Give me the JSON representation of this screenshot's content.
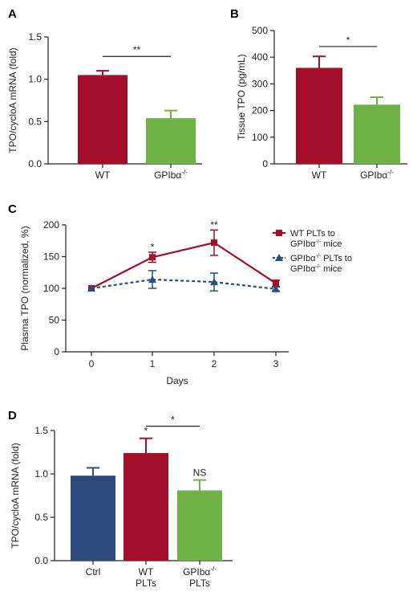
{
  "chart_data": [
    {
      "panel": "A",
      "type": "bar",
      "ylabel": "TPO/cycloA mRNA (fold)",
      "ylim": [
        0,
        1.5
      ],
      "yticks": [
        "0.0",
        "0.5",
        "1.0",
        "1.5"
      ],
      "categories": [
        "WT",
        "GPIbα-/-"
      ],
      "category_labels": [
        [
          "WT"
        ],
        [
          "GPIbα-/-"
        ]
      ],
      "values": [
        1.05,
        0.54
      ],
      "errors": [
        0.05,
        0.09
      ],
      "colors": [
        "#a30e2a",
        "#6fb247"
      ],
      "significance": [
        {
          "between": [
            0,
            1
          ],
          "label": "**",
          "y": 1.27
        }
      ],
      "bar_labels": []
    },
    {
      "panel": "B",
      "type": "bar",
      "ylabel": "Tissue TPO (pg/mL)",
      "ylim": [
        0,
        500
      ],
      "yticks": [
        "0",
        "100",
        "200",
        "300",
        "400",
        "500"
      ],
      "categories": [
        "WT",
        "GPIbα-/-"
      ],
      "category_labels": [
        [
          "WT"
        ],
        [
          "GPIbα-/-"
        ]
      ],
      "values": [
        360,
        222
      ],
      "errors": [
        43,
        28
      ],
      "colors": [
        "#a30e2a",
        "#6fb247"
      ],
      "significance": [
        {
          "between": [
            0,
            1
          ],
          "label": "*",
          "y": 440
        }
      ],
      "bar_labels": []
    },
    {
      "panel": "C",
      "type": "line",
      "ylabel": "Plasma TPO (normalized, %)",
      "xlabel": "Days",
      "x": [
        0,
        1,
        2,
        3
      ],
      "xticks": [
        "0",
        "1",
        "2",
        "3"
      ],
      "ylim": [
        0,
        200
      ],
      "yticks": [
        "0",
        "50",
        "100",
        "150",
        "200"
      ],
      "series": [
        {
          "name": "WT PLTs to GPIbα-/- mice",
          "legend_lines": [
            "WT PLTs to",
            "GPIbα-/- mice"
          ],
          "values": [
            100,
            149,
            172,
            108
          ],
          "errors": [
            0,
            8,
            20,
            5
          ],
          "color": "#a30e2a",
          "marker": "square",
          "dashed": false
        },
        {
          "name": "GPIbα-/- PLTs to GPIbα-/- mice",
          "legend_lines": [
            "GPIbα-/- PLTs to",
            "GPIbα-/- mice"
          ],
          "values": [
            100,
            114,
            110,
            99
          ],
          "errors": [
            0,
            14,
            14,
            3
          ],
          "color": "#2a4d7f",
          "marker": "triangle",
          "dashed": true
        }
      ],
      "significance": [
        {
          "x": 1,
          "label": "*",
          "y": 160
        },
        {
          "x": 2,
          "label": "**",
          "y": 195
        }
      ]
    },
    {
      "panel": "D",
      "type": "bar",
      "ylabel": "TPO/cycloA mRNA (fold)",
      "ylim": [
        0,
        1.5
      ],
      "yticks": [
        "0.0",
        "0.5",
        "1.0",
        "1.5"
      ],
      "categories": [
        "Ctrl",
        "WT PLTs",
        "GPIbα-/- PLTs"
      ],
      "category_labels": [
        [
          "Ctrl"
        ],
        [
          "WT",
          "PLTs"
        ],
        [
          "GPIbα-/-",
          "PLTs"
        ]
      ],
      "values": [
        0.98,
        1.24,
        0.81
      ],
      "errors": [
        0.09,
        0.17,
        0.12
      ],
      "colors": [
        "#2e4a7d",
        "#a30e2a",
        "#6fb247"
      ],
      "significance": [
        {
          "between": [
            1,
            2
          ],
          "label": "*",
          "y": 1.55
        }
      ],
      "bar_labels": [
        {
          "index": 1,
          "label": "*"
        },
        {
          "index": 2,
          "label": "NS"
        }
      ]
    }
  ]
}
